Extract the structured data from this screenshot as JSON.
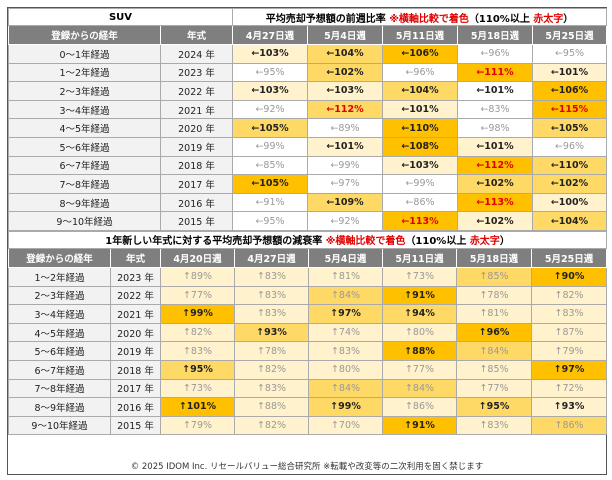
{
  "palette": [
    "#ffffff",
    "#fff2cc",
    "#ffd966",
    "#ffc000"
  ],
  "top": {
    "label": "SUV",
    "title": [
      [
        "平均売却予想額の前週比率 ",
        false
      ],
      [
        "※横軸比較で着色",
        true
      ],
      [
        "（110%以上 ",
        false
      ],
      [
        "赤太字",
        true
      ],
      [
        "）",
        false
      ]
    ],
    "headers": [
      "登録からの経年",
      "年式",
      "4月27日週",
      "5月4日週",
      "5月11日週",
      "5月18日週",
      "5月25日週"
    ],
    "rows": [
      {
        "age": "0～1年経過",
        "year": "2024 年",
        "cells": [
          [
            "←103%",
            1,
            1,
            0
          ],
          [
            "←104%",
            2,
            1,
            0
          ],
          [
            "←106%",
            3,
            1,
            0
          ],
          [
            "←96%",
            0,
            0,
            0
          ],
          [
            "←95%",
            0,
            0,
            0
          ]
        ]
      },
      {
        "age": "1～2年経過",
        "year": "2023 年",
        "cells": [
          [
            "←95%",
            0,
            0,
            0
          ],
          [
            "←102%",
            2,
            1,
            0
          ],
          [
            "←96%",
            0,
            0,
            0
          ],
          [
            "←111%",
            3,
            1,
            1
          ],
          [
            "←101%",
            1,
            1,
            0
          ]
        ]
      },
      {
        "age": "2～3年経過",
        "year": "2022 年",
        "cells": [
          [
            "←103%",
            1,
            1,
            0
          ],
          [
            "←103%",
            1,
            1,
            0
          ],
          [
            "←104%",
            2,
            1,
            0
          ],
          [
            "←101%",
            0,
            1,
            0
          ],
          [
            "←106%",
            3,
            1,
            0
          ]
        ]
      },
      {
        "age": "3～4年経過",
        "year": "2021 年",
        "cells": [
          [
            "←92%",
            0,
            0,
            0
          ],
          [
            "←112%",
            2,
            1,
            1
          ],
          [
            "←101%",
            1,
            1,
            0
          ],
          [
            "←83%",
            0,
            0,
            0
          ],
          [
            "←115%",
            3,
            1,
            1
          ]
        ]
      },
      {
        "age": "4～5年経過",
        "year": "2020 年",
        "cells": [
          [
            "←105%",
            2,
            1,
            0
          ],
          [
            "←89%",
            0,
            0,
            0
          ],
          [
            "←110%",
            3,
            1,
            0
          ],
          [
            "←98%",
            0,
            0,
            0
          ],
          [
            "←105%",
            2,
            1,
            0
          ]
        ]
      },
      {
        "age": "5～6年経過",
        "year": "2019 年",
        "cells": [
          [
            "←99%",
            0,
            0,
            0
          ],
          [
            "←101%",
            1,
            1,
            0
          ],
          [
            "←108%",
            3,
            1,
            0
          ],
          [
            "←101%",
            1,
            1,
            0
          ],
          [
            "←96%",
            0,
            0,
            0
          ]
        ]
      },
      {
        "age": "6～7年経過",
        "year": "2018 年",
        "cells": [
          [
            "←85%",
            0,
            0,
            0
          ],
          [
            "←99%",
            0,
            0,
            0
          ],
          [
            "←103%",
            1,
            1,
            0
          ],
          [
            "←112%",
            3,
            1,
            1
          ],
          [
            "←110%",
            2,
            1,
            0
          ]
        ]
      },
      {
        "age": "7～8年経過",
        "year": "2017 年",
        "cells": [
          [
            "←105%",
            3,
            1,
            0
          ],
          [
            "←97%",
            0,
            0,
            0
          ],
          [
            "←99%",
            0,
            0,
            0
          ],
          [
            "←102%",
            2,
            1,
            0
          ],
          [
            "←102%",
            2,
            1,
            0
          ]
        ]
      },
      {
        "age": "8～9年経過",
        "year": "2016 年",
        "cells": [
          [
            "←91%",
            0,
            0,
            0
          ],
          [
            "←109%",
            2,
            1,
            0
          ],
          [
            "←86%",
            0,
            0,
            0
          ],
          [
            "←113%",
            3,
            1,
            1
          ],
          [
            "←100%",
            1,
            1,
            0
          ]
        ]
      },
      {
        "age": "9～10年経過",
        "year": "2015 年",
        "cells": [
          [
            "←95%",
            0,
            0,
            0
          ],
          [
            "←92%",
            0,
            0,
            0
          ],
          [
            "←113%",
            3,
            1,
            1
          ],
          [
            "←102%",
            1,
            1,
            0
          ],
          [
            "←104%",
            2,
            1,
            0
          ]
        ]
      }
    ]
  },
  "bottom": {
    "title": [
      [
        "1年新しい年式に対する平均売却予想額の減衰率 ",
        false
      ],
      [
        "※横軸比較で着色",
        true
      ],
      [
        "（110%以上 ",
        false
      ],
      [
        "赤太字",
        true
      ],
      [
        "）",
        false
      ]
    ],
    "headers": [
      "登録からの経年",
      "年式",
      "4月20日週",
      "4月27日週",
      "5月4日週",
      "5月11日週",
      "5月18日週",
      "5月25日週"
    ],
    "rows": [
      {
        "age": "1～2年経過",
        "year": "2023 年",
        "cells": [
          [
            "↑89%",
            1,
            0,
            0
          ],
          [
            "↑83%",
            1,
            0,
            0
          ],
          [
            "↑81%",
            1,
            0,
            0
          ],
          [
            "↑73%",
            1,
            0,
            0
          ],
          [
            "↑85%",
            2,
            0,
            0
          ],
          [
            "↑90%",
            3,
            1,
            0
          ]
        ]
      },
      {
        "age": "2～3年経過",
        "year": "2022 年",
        "cells": [
          [
            "↑77%",
            1,
            0,
            0
          ],
          [
            "↑83%",
            1,
            0,
            0
          ],
          [
            "↑84%",
            2,
            0,
            0
          ],
          [
            "↑91%",
            3,
            1,
            0
          ],
          [
            "↑78%",
            1,
            0,
            0
          ],
          [
            "↑82%",
            1,
            0,
            0
          ]
        ]
      },
      {
        "age": "3～4年経過",
        "year": "2021 年",
        "cells": [
          [
            "↑99%",
            3,
            1,
            0
          ],
          [
            "↑83%",
            1,
            0,
            0
          ],
          [
            "↑97%",
            2,
            1,
            0
          ],
          [
            "↑94%",
            2,
            1,
            0
          ],
          [
            "↑81%",
            1,
            0,
            0
          ],
          [
            "↑83%",
            1,
            0,
            0
          ]
        ]
      },
      {
        "age": "4～5年経過",
        "year": "2020 年",
        "cells": [
          [
            "↑82%",
            1,
            0,
            0
          ],
          [
            "↑93%",
            2,
            1,
            0
          ],
          [
            "↑74%",
            1,
            0,
            0
          ],
          [
            "↑80%",
            1,
            0,
            0
          ],
          [
            "↑96%",
            3,
            1,
            0
          ],
          [
            "↑87%",
            1,
            0,
            0
          ]
        ]
      },
      {
        "age": "5～6年経過",
        "year": "2019 年",
        "cells": [
          [
            "↑83%",
            1,
            0,
            0
          ],
          [
            "↑78%",
            1,
            0,
            0
          ],
          [
            "↑83%",
            1,
            0,
            0
          ],
          [
            "↑88%",
            3,
            1,
            0
          ],
          [
            "↑84%",
            2,
            0,
            0
          ],
          [
            "↑79%",
            1,
            0,
            0
          ]
        ]
      },
      {
        "age": "6～7年経過",
        "year": "2018 年",
        "cells": [
          [
            "↑95%",
            2,
            1,
            0
          ],
          [
            "↑82%",
            1,
            0,
            0
          ],
          [
            "↑80%",
            1,
            0,
            0
          ],
          [
            "↑77%",
            1,
            0,
            0
          ],
          [
            "↑85%",
            1,
            0,
            0
          ],
          [
            "↑97%",
            3,
            1,
            0
          ]
        ]
      },
      {
        "age": "7～8年経過",
        "year": "2017 年",
        "cells": [
          [
            "↑73%",
            1,
            0,
            0
          ],
          [
            "↑83%",
            1,
            0,
            0
          ],
          [
            "↑84%",
            2,
            0,
            0
          ],
          [
            "↑84%",
            2,
            0,
            0
          ],
          [
            "↑77%",
            1,
            0,
            0
          ],
          [
            "↑72%",
            1,
            0,
            0
          ]
        ]
      },
      {
        "age": "8～9年経過",
        "year": "2016 年",
        "cells": [
          [
            "↑101%",
            3,
            1,
            0
          ],
          [
            "↑88%",
            1,
            0,
            0
          ],
          [
            "↑99%",
            2,
            1,
            0
          ],
          [
            "↑86%",
            1,
            0,
            0
          ],
          [
            "↑95%",
            2,
            1,
            0
          ],
          [
            "↑93%",
            1,
            1,
            0
          ]
        ]
      },
      {
        "age": "9～10年経過",
        "year": "2015 年",
        "cells": [
          [
            "↑79%",
            1,
            0,
            0
          ],
          [
            "↑82%",
            1,
            0,
            0
          ],
          [
            "↑70%",
            1,
            0,
            0
          ],
          [
            "↑91%",
            3,
            1,
            0
          ],
          [
            "↑83%",
            1,
            0,
            0
          ],
          [
            "↑86%",
            2,
            0,
            0
          ]
        ]
      }
    ]
  },
  "footer": "© 2025 IDOM Inc. リセールバリュー総合研究所 ※転載や改変等の二次利用を固く禁じます"
}
